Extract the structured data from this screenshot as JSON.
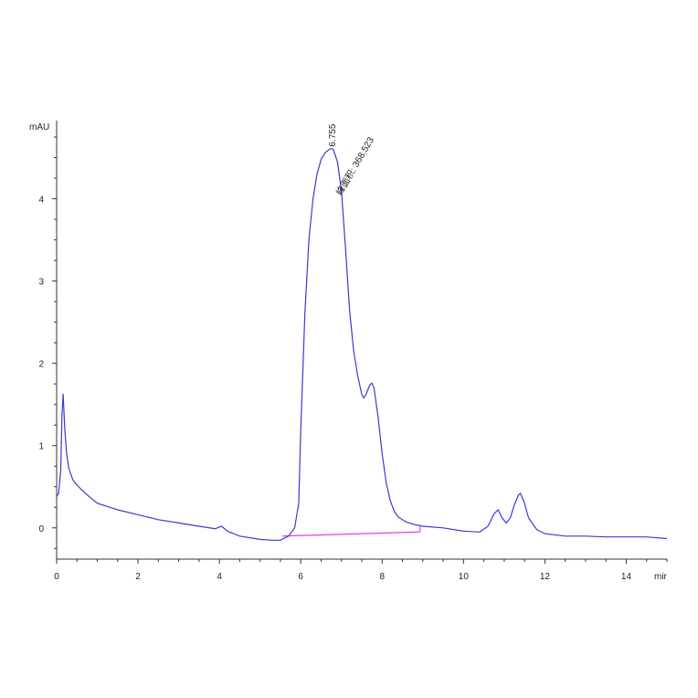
{
  "chart_data": {
    "type": "line",
    "ylabel": "mAU",
    "xlabel": "mir",
    "xlim": [
      0,
      15
    ],
    "ylim": [
      -0.38,
      4.95
    ],
    "xticks": [
      0,
      2,
      4,
      6,
      8,
      10,
      12,
      14
    ],
    "yticks": [
      0,
      1,
      2,
      3,
      4
    ],
    "grid": false,
    "series": [
      {
        "color": "#3a3ad6",
        "x": [
          0,
          0.05,
          0.1,
          0.13,
          0.16,
          0.2,
          0.25,
          0.3,
          0.4,
          0.5,
          0.6,
          0.8,
          1.0,
          1.5,
          2.0,
          2.5,
          3.0,
          3.5,
          3.9,
          4.05,
          4.2,
          4.5,
          5.0,
          5.3,
          5.5,
          5.7,
          5.85,
          5.95,
          6.0,
          6.1,
          6.2,
          6.3,
          6.4,
          6.5,
          6.6,
          6.7,
          6.75,
          6.8,
          6.9,
          7.0,
          7.1,
          7.2,
          7.3,
          7.4,
          7.5,
          7.55,
          7.6,
          7.7,
          7.75,
          7.8,
          7.9,
          8.0,
          8.1,
          8.2,
          8.3,
          8.4,
          8.6,
          8.8,
          9.0,
          9.5,
          10.0,
          10.4,
          10.6,
          10.75,
          10.85,
          10.95,
          11.05,
          11.15,
          11.25,
          11.35,
          11.4,
          11.5,
          11.6,
          11.8,
          12.0,
          12.5,
          13.0,
          13.5,
          14.0,
          14.5,
          15.0
        ],
        "y": [
          0.38,
          0.42,
          0.7,
          1.35,
          1.63,
          1.2,
          0.88,
          0.72,
          0.58,
          0.52,
          0.47,
          0.38,
          0.3,
          0.22,
          0.16,
          0.1,
          0.06,
          0.02,
          -0.01,
          0.02,
          -0.04,
          -0.1,
          -0.14,
          -0.15,
          -0.15,
          -0.1,
          0.0,
          0.3,
          1.2,
          2.6,
          3.5,
          4.0,
          4.3,
          4.48,
          4.56,
          4.6,
          4.61,
          4.6,
          4.45,
          4.1,
          3.4,
          2.65,
          2.15,
          1.85,
          1.62,
          1.58,
          1.62,
          1.74,
          1.76,
          1.7,
          1.35,
          0.9,
          0.55,
          0.33,
          0.2,
          0.13,
          0.07,
          0.04,
          0.02,
          0.0,
          -0.04,
          -0.05,
          0.02,
          0.17,
          0.22,
          0.12,
          0.06,
          0.12,
          0.28,
          0.4,
          0.42,
          0.3,
          0.12,
          -0.02,
          -0.07,
          -0.1,
          -0.1,
          -0.11,
          -0.11,
          -0.11,
          -0.13
        ]
      }
    ],
    "baseline": {
      "color": "#e040e0",
      "x": [
        5.55,
        8.93
      ],
      "y": [
        -0.1,
        -0.05
      ]
    },
    "annotations": [
      {
        "text": "6.755",
        "x": 6.755,
        "y": 4.61
      },
      {
        "text": "峰面积: 368.523",
        "x": 6.95,
        "y": 4.1
      }
    ]
  }
}
